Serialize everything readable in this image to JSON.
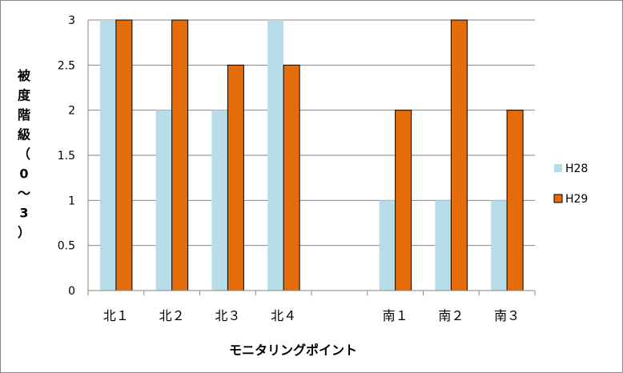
{
  "chart_data": {
    "type": "bar",
    "title": "",
    "xlabel": "モニタリングポイント",
    "ylabel_chars": [
      "被",
      "度",
      "階",
      "級",
      "（",
      "0",
      "～",
      "3",
      "）"
    ],
    "categories": [
      "北１",
      "北２",
      "北３",
      "北４",
      "",
      "南１",
      "南２",
      "南３"
    ],
    "series": [
      {
        "name": "H28",
        "color": "#b7dde8",
        "values": [
          3,
          2,
          2,
          3,
          null,
          1,
          1,
          1
        ]
      },
      {
        "name": "H29",
        "color": "#e46c0a",
        "values": [
          3,
          3,
          2.5,
          2.5,
          null,
          2,
          3,
          2
        ]
      }
    ],
    "ylim": [
      0,
      3
    ],
    "yticks": [
      "0",
      "0.5",
      "1",
      "1.5",
      "2",
      "2.5",
      "3"
    ],
    "grid": true,
    "legend_position": "right"
  }
}
